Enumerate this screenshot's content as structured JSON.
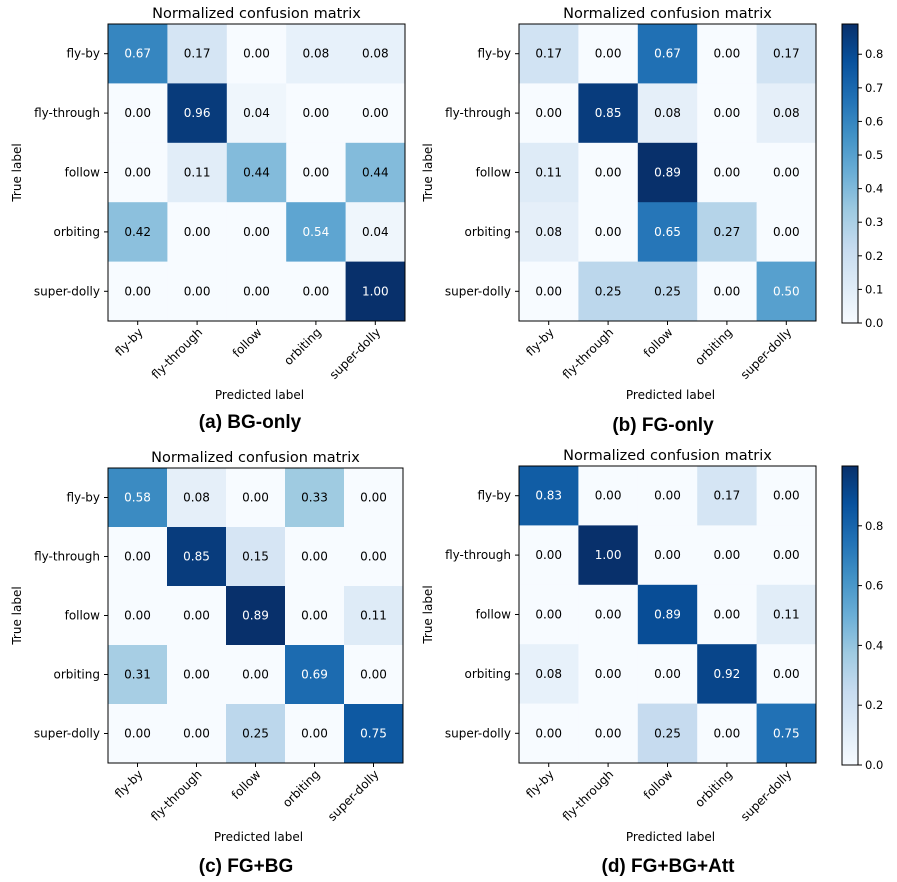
{
  "chart_data": [
    {
      "type": "heatmap",
      "title": "Normalized confusion matrix",
      "caption": "(a) BG-only",
      "xlabel": "Predicted label",
      "ylabel": "True label",
      "categories": [
        "fly-by",
        "fly-through",
        "follow",
        "orbiting",
        "super-dolly"
      ],
      "values": [
        [
          0.67,
          0.17,
          0.0,
          0.08,
          0.08
        ],
        [
          0.0,
          0.96,
          0.04,
          0.0,
          0.0
        ],
        [
          0.0,
          0.11,
          0.44,
          0.0,
          0.44
        ],
        [
          0.42,
          0.0,
          0.0,
          0.54,
          0.04
        ],
        [
          0.0,
          0.0,
          0.0,
          0.0,
          1.0
        ]
      ],
      "value_labels": [
        [
          "0.67",
          "0.17",
          "0.00",
          "0.08",
          "0.08"
        ],
        [
          "0.00",
          "0.96",
          "0.04",
          "0.00",
          "0.00"
        ],
        [
          "0.00",
          "0.11",
          "0.44",
          "0.00",
          "0.44"
        ],
        [
          "0.42",
          "0.00",
          "0.00",
          "0.54",
          "0.04"
        ],
        [
          "0.00",
          "0.00",
          "0.00",
          "0.00",
          "1.00"
        ]
      ],
      "colormap": "Blues",
      "color_range": [
        0,
        1.0
      ]
    },
    {
      "type": "heatmap",
      "title": "Normalized confusion matrix",
      "caption": "(b) FG-only",
      "xlabel": "Predicted label",
      "ylabel": "True label",
      "categories": [
        "fly-by",
        "fly-through",
        "follow",
        "orbiting",
        "super-dolly"
      ],
      "values": [
        [
          0.17,
          0.0,
          0.67,
          0.0,
          0.17
        ],
        [
          0.0,
          0.85,
          0.08,
          0.0,
          0.08
        ],
        [
          0.11,
          0.0,
          0.89,
          0.0,
          0.0
        ],
        [
          0.08,
          0.0,
          0.65,
          0.27,
          0.0
        ],
        [
          0.0,
          0.25,
          0.25,
          0.0,
          0.5
        ]
      ],
      "value_labels": [
        [
          "0.17",
          "0.00",
          "0.67",
          "0.00",
          "0.17"
        ],
        [
          "0.00",
          "0.85",
          "0.08",
          "0.00",
          "0.08"
        ],
        [
          "0.11",
          "0.00",
          "0.89",
          "0.00",
          "0.00"
        ],
        [
          "0.08",
          "0.00",
          "0.65",
          "0.27",
          "0.00"
        ],
        [
          "0.00",
          "0.25",
          "0.25",
          "0.00",
          "0.50"
        ]
      ],
      "colormap": "Blues",
      "color_range": [
        0,
        0.89
      ],
      "colorbar": {
        "ticks": [
          0.0,
          0.1,
          0.2,
          0.3,
          0.4,
          0.5,
          0.6,
          0.7,
          0.8
        ],
        "tick_labels": [
          "0.0",
          "0.1",
          "0.2",
          "0.3",
          "0.4",
          "0.5",
          "0.6",
          "0.7",
          "0.8"
        ]
      }
    },
    {
      "type": "heatmap",
      "title": "Normalized confusion matrix",
      "caption": "(c) FG+BG",
      "xlabel": "Predicted label",
      "ylabel": "True label",
      "categories": [
        "fly-by",
        "fly-through",
        "follow",
        "orbiting",
        "super-dolly"
      ],
      "values": [
        [
          0.58,
          0.08,
          0.0,
          0.33,
          0.0
        ],
        [
          0.0,
          0.85,
          0.15,
          0.0,
          0.0
        ],
        [
          0.0,
          0.0,
          0.89,
          0.0,
          0.11
        ],
        [
          0.31,
          0.0,
          0.0,
          0.69,
          0.0
        ],
        [
          0.0,
          0.0,
          0.25,
          0.0,
          0.75
        ]
      ],
      "value_labels": [
        [
          "0.58",
          "0.08",
          "0.00",
          "0.33",
          "0.00"
        ],
        [
          "0.00",
          "0.85",
          "0.15",
          "0.00",
          "0.00"
        ],
        [
          "0.00",
          "0.00",
          "0.89",
          "0.00",
          "0.11"
        ],
        [
          "0.31",
          "0.00",
          "0.00",
          "0.69",
          "0.00"
        ],
        [
          "0.00",
          "0.00",
          "0.25",
          "0.00",
          "0.75"
        ]
      ],
      "colormap": "Blues",
      "color_range": [
        0,
        0.89
      ]
    },
    {
      "type": "heatmap",
      "title": "Normalized confusion matrix",
      "caption": "(d) FG+BG+Att",
      "xlabel": "Predicted label",
      "ylabel": "True label",
      "categories": [
        "fly-by",
        "fly-through",
        "follow",
        "orbiting",
        "super-dolly"
      ],
      "values": [
        [
          0.83,
          0.0,
          0.0,
          0.17,
          0.0
        ],
        [
          0.0,
          1.0,
          0.0,
          0.0,
          0.0
        ],
        [
          0.0,
          0.0,
          0.89,
          0.0,
          0.11
        ],
        [
          0.08,
          0.0,
          0.0,
          0.92,
          0.0
        ],
        [
          0.0,
          0.0,
          0.25,
          0.0,
          0.75
        ]
      ],
      "value_labels": [
        [
          "0.83",
          "0.00",
          "0.00",
          "0.17",
          "0.00"
        ],
        [
          "0.00",
          "1.00",
          "0.00",
          "0.00",
          "0.00"
        ],
        [
          "0.00",
          "0.00",
          "0.89",
          "0.00",
          "0.11"
        ],
        [
          "0.08",
          "0.00",
          "0.00",
          "0.92",
          "0.00"
        ],
        [
          "0.00",
          "0.00",
          "0.25",
          "0.00",
          "0.75"
        ]
      ],
      "colormap": "Blues",
      "color_range": [
        0,
        1.0
      ],
      "colorbar": {
        "ticks": [
          0.0,
          0.2,
          0.4,
          0.6,
          0.8
        ],
        "tick_labels": [
          "0.0",
          "0.2",
          "0.4",
          "0.6",
          "0.8"
        ]
      }
    }
  ]
}
